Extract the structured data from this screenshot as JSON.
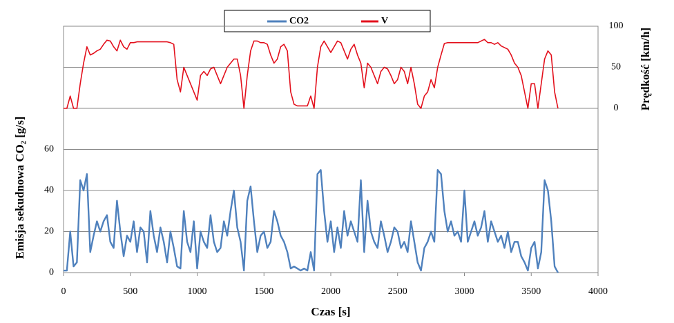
{
  "chart_data": {
    "type": "line",
    "xlabel": "Czas [s]",
    "ylabel": "Emisja sekudnowa CO₂ [g/s]",
    "y2label": "Prędkość [km/h]",
    "x": [
      0,
      25,
      50,
      75,
      100,
      125,
      150,
      175,
      200,
      225,
      250,
      275,
      300,
      325,
      350,
      375,
      400,
      425,
      450,
      475,
      500,
      525,
      550,
      575,
      600,
      625,
      650,
      675,
      700,
      725,
      750,
      775,
      800,
      825,
      850,
      875,
      900,
      925,
      950,
      975,
      1000,
      1025,
      1050,
      1075,
      1100,
      1125,
      1150,
      1175,
      1200,
      1225,
      1250,
      1275,
      1300,
      1325,
      1350,
      1375,
      1400,
      1425,
      1450,
      1475,
      1500,
      1525,
      1550,
      1575,
      1600,
      1625,
      1650,
      1675,
      1700,
      1725,
      1750,
      1775,
      1800,
      1825,
      1850,
      1875,
      1900,
      1925,
      1950,
      1975,
      2000,
      2025,
      2050,
      2075,
      2100,
      2125,
      2150,
      2175,
      2200,
      2225,
      2250,
      2275,
      2300,
      2325,
      2350,
      2375,
      2400,
      2425,
      2450,
      2475,
      2500,
      2525,
      2550,
      2575,
      2600,
      2625,
      2650,
      2675,
      2700,
      2725,
      2750,
      2775,
      2800,
      2825,
      2850,
      2875,
      2900,
      2925,
      2950,
      2975,
      3000,
      3025,
      3050,
      3075,
      3100,
      3125,
      3150,
      3175,
      3200,
      3225,
      3250,
      3275,
      3300,
      3325,
      3350,
      3375,
      3400,
      3425,
      3450,
      3475,
      3500,
      3525,
      3550,
      3575,
      3600,
      3625,
      3650,
      3675,
      3700
    ],
    "series": [
      {
        "name": "CO2",
        "color": "#4f81bd",
        "axis": "y",
        "values": [
          1,
          1,
          20,
          3,
          5,
          45,
          40,
          48,
          10,
          18,
          25,
          20,
          25,
          28,
          15,
          12,
          35,
          20,
          8,
          18,
          15,
          25,
          10,
          22,
          20,
          5,
          30,
          18,
          10,
          22,
          15,
          5,
          20,
          12,
          3,
          2,
          30,
          15,
          10,
          25,
          2,
          20,
          15,
          12,
          28,
          15,
          10,
          12,
          25,
          18,
          30,
          40,
          22,
          15,
          1,
          35,
          42,
          25,
          10,
          18,
          20,
          12,
          15,
          30,
          25,
          18,
          15,
          10,
          2,
          3,
          2,
          1,
          2,
          1,
          10,
          1,
          48,
          50,
          30,
          15,
          25,
          10,
          22,
          12,
          30,
          18,
          25,
          20,
          15,
          45,
          10,
          35,
          20,
          15,
          12,
          25,
          18,
          10,
          15,
          22,
          20,
          12,
          15,
          10,
          25,
          15,
          5,
          1,
          12,
          15,
          20,
          15,
          50,
          48,
          30,
          20,
          25,
          18,
          20,
          15,
          40,
          15,
          20,
          25,
          18,
          22,
          30,
          15,
          25,
          20,
          15,
          18,
          12,
          20,
          10,
          15,
          15,
          8,
          5,
          1,
          12,
          15,
          2,
          10,
          45,
          40,
          25,
          3,
          0
        ]
      },
      {
        "name": "V",
        "color": "#e3101c",
        "axis": "y2",
        "values": [
          0,
          0,
          15,
          0,
          0,
          30,
          55,
          75,
          65,
          67,
          70,
          72,
          78,
          83,
          82,
          75,
          70,
          83,
          75,
          72,
          80,
          80,
          81,
          81,
          81,
          81,
          81,
          81,
          81,
          81,
          81,
          81,
          80,
          78,
          35,
          20,
          50,
          40,
          30,
          20,
          10,
          40,
          45,
          40,
          48,
          50,
          40,
          30,
          40,
          50,
          55,
          60,
          60,
          40,
          0,
          40,
          70,
          82,
          82,
          80,
          80,
          78,
          65,
          55,
          60,
          75,
          78,
          70,
          20,
          5,
          3,
          3,
          3,
          3,
          15,
          0,
          50,
          75,
          82,
          75,
          68,
          75,
          82,
          80,
          70,
          60,
          72,
          78,
          65,
          55,
          25,
          55,
          50,
          40,
          30,
          45,
          50,
          48,
          40,
          30,
          35,
          50,
          45,
          30,
          50,
          30,
          5,
          0,
          15,
          20,
          35,
          25,
          50,
          65,
          79,
          80,
          80,
          80,
          80,
          80,
          80,
          80,
          80,
          80,
          80,
          82,
          84,
          80,
          80,
          78,
          80,
          76,
          74,
          72,
          65,
          55,
          50,
          40,
          20,
          0,
          30,
          30,
          0,
          30,
          60,
          70,
          65,
          20,
          0
        ]
      }
    ],
    "xlim": [
      0,
      4000
    ],
    "xticks": [
      0,
      500,
      1000,
      1500,
      2000,
      2500,
      3000,
      3500,
      4000
    ],
    "ylim": [
      0,
      120
    ],
    "yticks": [
      0,
      20,
      40,
      60
    ],
    "y2lim": [
      -200,
      100
    ],
    "y2ticks": [
      0,
      50,
      100
    ],
    "grid": true,
    "legend": "top"
  }
}
